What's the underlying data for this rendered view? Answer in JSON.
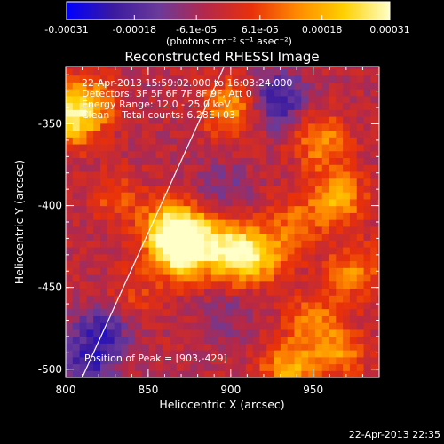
{
  "colorbar": {
    "ticks": [
      "-0.00031",
      "-0.00018",
      "-6.1e-05",
      "6.1e-05",
      "0.00018",
      "0.00031"
    ],
    "units": "(photons cm⁻² s⁻¹ asec⁻²)",
    "range": [
      -0.00031,
      0.00031
    ],
    "colors": [
      "#0000ff",
      "#3a1aa0",
      "#6b3a9a",
      "#b3284a",
      "#e8300a",
      "#ff8a00",
      "#ffd000",
      "#ffffc8"
    ]
  },
  "annotations": {
    "time_range": "22-Apr-2013 15:59:02.000 to 16:03:24.000",
    "detectors": "Detectors: 3F 5F 6F 7F 8F 9F, Att 0",
    "energy": "Energy Range: 12.0 - 25.0 keV",
    "clean": "Clean    Total counts: 6.28E+03",
    "peak": "Position of Peak = [903,-429]"
  },
  "footer_timestamp": "22-Apr-2013 22:35",
  "chart_data": {
    "type": "heatmap",
    "title": "Reconstructed RHESSI Image",
    "xlabel": "Heliocentric X (arcsec)",
    "ylabel": "Heliocentric Y (arcsec)",
    "xlim": [
      800,
      990
    ],
    "ylim": [
      -505,
      -315
    ],
    "xticks": [
      800,
      850,
      900,
      950
    ],
    "yticks": [
      -500,
      -450,
      -400,
      -350
    ],
    "peak": [
      903,
      -429
    ],
    "limb_line": [
      [
        810,
        -505
      ],
      [
        896,
        -315
      ]
    ],
    "value_scale": [
      -0.00031,
      0.00031
    ],
    "hotspots": [
      {
        "x": 803,
        "y": -347,
        "value": 0.00024
      },
      {
        "x": 815,
        "y": -335,
        "value": 0.00016
      },
      {
        "x": 863,
        "y": -415,
        "value": 0.0003
      },
      {
        "x": 870,
        "y": -430,
        "value": 0.00024
      },
      {
        "x": 880,
        "y": -418,
        "value": 0.00018
      },
      {
        "x": 903,
        "y": -429,
        "value": 0.00031
      },
      {
        "x": 920,
        "y": -430,
        "value": 0.00016
      },
      {
        "x": 900,
        "y": -340,
        "value": 0.0002
      },
      {
        "x": 940,
        "y": -410,
        "value": 0.00012
      },
      {
        "x": 955,
        "y": -360,
        "value": 0.00018
      },
      {
        "x": 965,
        "y": -395,
        "value": 0.0002
      },
      {
        "x": 975,
        "y": -440,
        "value": 0.00016
      },
      {
        "x": 950,
        "y": -470,
        "value": 0.00014
      },
      {
        "x": 935,
        "y": -500,
        "value": 0.0002
      },
      {
        "x": 965,
        "y": -490,
        "value": 0.00016
      },
      {
        "x": 830,
        "y": -395,
        "value": 0.0001
      },
      {
        "x": 840,
        "y": -455,
        "value": 8e-05
      }
    ],
    "coldspots": [
      {
        "x": 822,
        "y": -478,
        "value": -0.00018
      },
      {
        "x": 812,
        "y": -500,
        "value": -0.00014
      },
      {
        "x": 928,
        "y": -335,
        "value": -0.0002
      },
      {
        "x": 895,
        "y": -390,
        "value": -8e-05
      },
      {
        "x": 900,
        "y": -465,
        "value": -6e-05
      }
    ]
  }
}
